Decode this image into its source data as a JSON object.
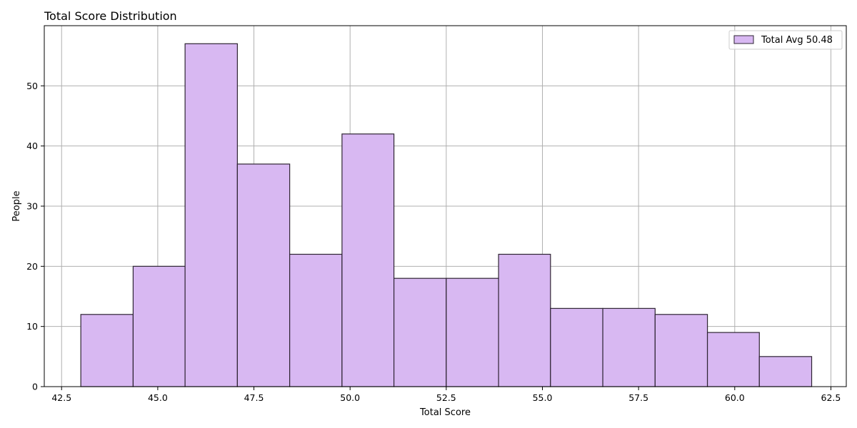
{
  "chart_data": {
    "type": "bar",
    "title": "Total Score Distribution",
    "xlabel": "Total Score",
    "ylabel": "People",
    "xlim": [
      42.05,
      62.9
    ],
    "ylim": [
      0,
      60
    ],
    "x_ticks": [
      42.5,
      45.0,
      47.5,
      50.0,
      52.5,
      55.0,
      57.5,
      60.0,
      62.5
    ],
    "x_tick_labels": [
      "42.5",
      "45.0",
      "47.5",
      "50.0",
      "52.5",
      "55.0",
      "57.5",
      "60.0",
      "62.5"
    ],
    "y_ticks": [
      0,
      10,
      20,
      30,
      40,
      50
    ],
    "y_tick_labels": [
      "0",
      "10",
      "20",
      "30",
      "40",
      "50"
    ],
    "bin_edges": [
      43.0,
      44.36,
      45.71,
      47.07,
      48.43,
      49.79,
      51.14,
      52.5,
      53.86,
      55.21,
      56.57,
      57.93,
      59.29,
      60.64,
      62.0
    ],
    "values": [
      12,
      20,
      57,
      37,
      22,
      42,
      18,
      18,
      22,
      13,
      13,
      12,
      9,
      5
    ],
    "series": [
      {
        "name": "Total Avg 50.48",
        "values": [
          12,
          20,
          57,
          37,
          22,
          42,
          18,
          18,
          22,
          13,
          13,
          12,
          9,
          5
        ]
      }
    ],
    "grid": true,
    "legend_position": "top-right",
    "colors": {
      "bar_fill": "#d8b8f2",
      "bar_edge": "#2e2433",
      "grid": "#b0b0b0",
      "axis": "#000000"
    }
  }
}
